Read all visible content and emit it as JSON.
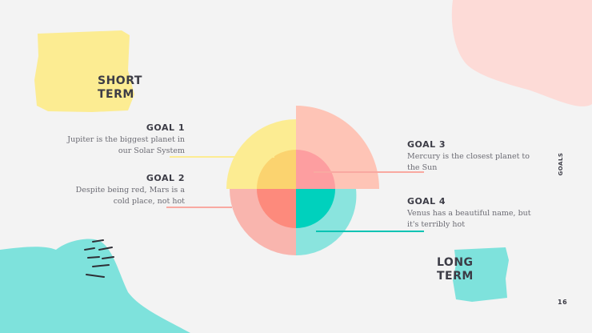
{
  "slide": {
    "side_label": "GOALS",
    "page_number": "16"
  },
  "terms": {
    "short": "SHORT\nTERM",
    "long": "LONG\nTERM"
  },
  "goals": [
    {
      "title": "GOAL 1",
      "desc": "Jupiter is the biggest planet in our Solar System",
      "color": "#fcec92"
    },
    {
      "title": "GOAL 2",
      "desc": "Despite being red, Mars is a cold place, not hot",
      "color": "#f9a9a1"
    },
    {
      "title": "GOAL 3",
      "desc": "Mercury is the closest planet to the Sun",
      "color": "#fec4b6"
    },
    {
      "title": "GOAL 4",
      "desc": "Venus has a beautiful name, but it's terribly hot",
      "color": "#7ee2dc"
    }
  ],
  "colors": {
    "background": "#f3f3f3",
    "yellow": "#fcec92",
    "pink": "#fddbd7",
    "teal": "#7ee2dc",
    "text_dark": "#3c3c46"
  }
}
